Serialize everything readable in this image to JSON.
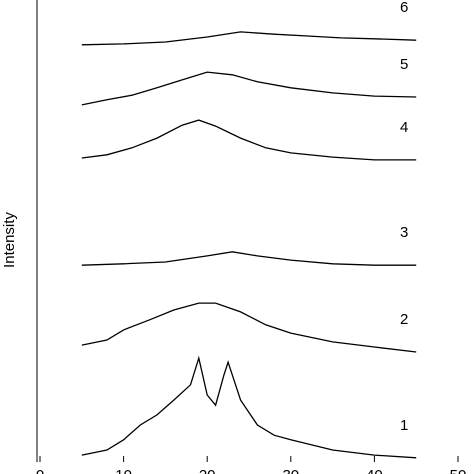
{
  "chart_data": {
    "type": "line",
    "ylabel": "Intensity",
    "xlim": [
      0,
      50
    ],
    "xticks": [
      0,
      10,
      20,
      30,
      40,
      50
    ],
    "ylim": [
      0,
      100
    ],
    "series": [
      {
        "name": "1",
        "color": "#000000",
        "x": [
          5,
          8,
          10,
          12,
          14,
          16,
          18,
          19,
          20,
          21,
          22,
          22.5,
          24,
          26,
          28,
          30,
          35,
          40,
          45
        ],
        "values": [
          1.5,
          2.6,
          4.8,
          8.0,
          10.2,
          13.4,
          16.7,
          22.5,
          14.5,
          12.3,
          18.8,
          21.6,
          13.4,
          8.0,
          5.8,
          4.8,
          2.6,
          1.5,
          0.9
        ]
      },
      {
        "name": "2",
        "color": "#000000",
        "x": [
          5,
          8,
          10,
          13,
          16,
          19,
          21,
          24,
          27,
          30,
          35,
          40,
          45
        ],
        "values": [
          25.3,
          26.4,
          28.6,
          30.7,
          32.9,
          34.4,
          34.4,
          32.5,
          29.7,
          27.9,
          26.0,
          24.9,
          23.8
        ]
      },
      {
        "name": "3",
        "color": "#000000",
        "x": [
          5,
          10,
          15,
          20,
          23,
          26,
          30,
          35,
          40,
          45
        ],
        "values": [
          42.6,
          42.9,
          43.3,
          44.6,
          45.5,
          44.6,
          43.7,
          42.9,
          42.6,
          42.6
        ]
      },
      {
        "name": "4",
        "color": "#000000",
        "x": [
          5,
          8,
          11,
          14,
          17,
          19,
          21,
          24,
          27,
          30,
          35,
          40,
          45
        ],
        "values": [
          65.8,
          66.5,
          68.0,
          70.1,
          72.9,
          74.0,
          72.7,
          70.1,
          68.0,
          66.9,
          66.0,
          65.4,
          65.4
        ]
      },
      {
        "name": "5",
        "color": "#000000",
        "x": [
          5,
          8,
          11,
          14,
          17,
          20,
          23,
          26,
          30,
          35,
          40,
          45
        ],
        "values": [
          77.3,
          78.4,
          79.4,
          81.0,
          82.7,
          84.4,
          83.8,
          82.3,
          81.0,
          79.9,
          79.2,
          79.0
        ]
      },
      {
        "name": "6",
        "color": "#000000",
        "x": [
          5,
          10,
          15,
          20,
          24,
          28,
          32,
          36,
          40,
          45
        ],
        "values": [
          90.3,
          90.5,
          90.9,
          92.0,
          93.1,
          92.6,
          92.2,
          91.8,
          91.6,
          91.3
        ]
      }
    ]
  }
}
